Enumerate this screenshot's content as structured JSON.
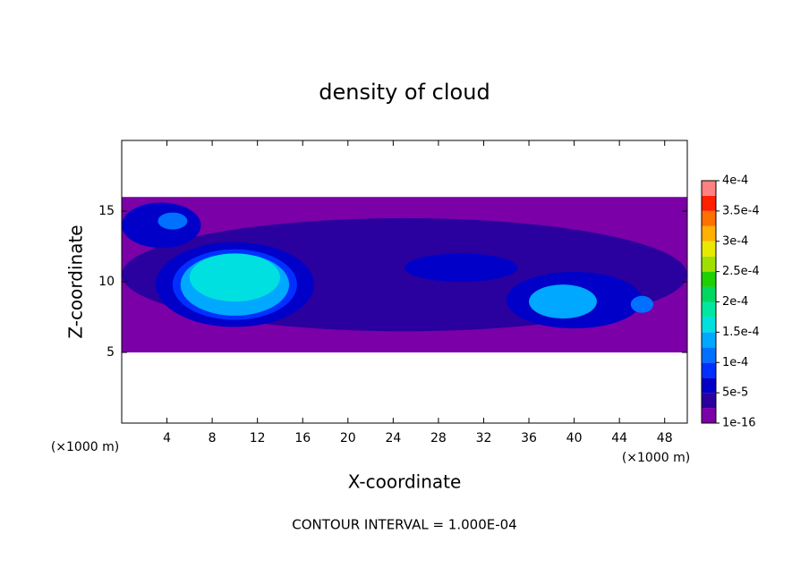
{
  "chart_data": {
    "type": "contour",
    "title": "density of cloud",
    "xlabel": "X-coordinate",
    "ylabel": "Z-coordinate",
    "xunit": "(×1000 m)",
    "yunit": "(×1000 m)",
    "footer": "CONTOUR INTERVAL = 1.000E-04",
    "xlim": [
      0,
      50
    ],
    "ylim": [
      0,
      20
    ],
    "xticks": [
      4,
      8,
      12,
      16,
      20,
      24,
      28,
      32,
      36,
      40,
      44,
      48
    ],
    "yticks": [
      5,
      10,
      15
    ],
    "colorbar_ticks": [
      {
        "value": 1e-16,
        "label": "1e-16"
      },
      {
        "value": 5e-05,
        "label": "5e-5"
      },
      {
        "value": 0.0001,
        "label": "1e-4"
      },
      {
        "value": 0.00015,
        "label": "1.5e-4"
      },
      {
        "value": 0.0002,
        "label": "2e-4"
      },
      {
        "value": 0.00025,
        "label": "2.5e-4"
      },
      {
        "value": 0.0003,
        "label": "3e-4"
      },
      {
        "value": 0.00035,
        "label": "3.5e-4"
      },
      {
        "value": 0.0004,
        "label": "4e-4"
      }
    ],
    "colors": [
      "#7b00a8",
      "#2a009e",
      "#0000c8",
      "#0030ff",
      "#0070ff",
      "#00a8ff",
      "#00e0e0",
      "#00e8a0",
      "#00d860",
      "#20d000",
      "#a0e000",
      "#e8e800",
      "#ffb000",
      "#ff7000",
      "#ff2000",
      "#ff8080"
    ],
    "regions": [
      {
        "shape": "rect",
        "x": 25,
        "z": 10.5,
        "rx": 25,
        "rz": 5.5,
        "value": 1e-16
      },
      {
        "shape": "ellipse",
        "x": 25,
        "z": 10.5,
        "rx": 25,
        "rz": 4,
        "value": 3e-05
      },
      {
        "shape": "ellipse",
        "x": 10,
        "z": 9.8,
        "rx": 7,
        "rz": 3,
        "value": 6e-05
      },
      {
        "shape": "ellipse",
        "x": 3.5,
        "z": 14,
        "rx": 3.5,
        "rz": 1.6,
        "value": 6e-05
      },
      {
        "shape": "ellipse",
        "x": 40,
        "z": 8.7,
        "rx": 6,
        "rz": 2,
        "value": 7e-05
      },
      {
        "shape": "ellipse",
        "x": 30,
        "z": 11,
        "rx": 5,
        "rz": 1,
        "value": 6e-05
      },
      {
        "shape": "ellipse",
        "x": 10,
        "z": 9.8,
        "rx": 5.5,
        "rz": 2.5,
        "value": 9e-05
      },
      {
        "shape": "ellipse",
        "x": 10,
        "z": 9.8,
        "rx": 4.8,
        "rz": 2.2,
        "value": 0.00014
      },
      {
        "shape": "ellipse",
        "x": 10,
        "z": 10.3,
        "rx": 4,
        "rz": 1.7,
        "value": 0.00017
      },
      {
        "shape": "ellipse",
        "x": 39,
        "z": 8.6,
        "rx": 3,
        "rz": 1.2,
        "value": 0.00013
      },
      {
        "shape": "ellipse",
        "x": 46,
        "z": 8.4,
        "rx": 1,
        "rz": 0.6,
        "value": 0.00011
      },
      {
        "shape": "ellipse",
        "x": 4.5,
        "z": 14.3,
        "rx": 1.3,
        "rz": 0.6,
        "value": 0.00012
      }
    ]
  }
}
